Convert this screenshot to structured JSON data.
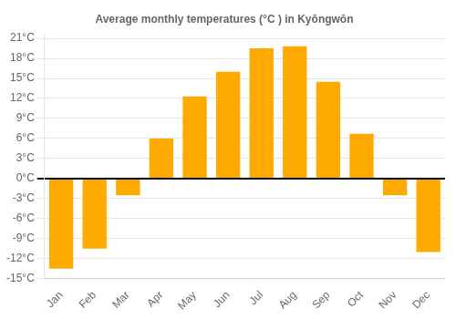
{
  "chart_data": {
    "type": "bar",
    "title": "Average monthly temperatures (°C ) in Kyŏngwŏn",
    "categories": [
      "Jan",
      "Feb",
      "Mar",
      "Apr",
      "May",
      "Jun",
      "Jul",
      "Aug",
      "Sep",
      "Oct",
      "Nov",
      "Dec"
    ],
    "values": [
      -13.5,
      -10.5,
      -2.5,
      6.0,
      12.3,
      16.0,
      19.5,
      19.8,
      14.5,
      6.7,
      -2.5,
      -11.0
    ],
    "color": "#FFAA00",
    "ylim": [
      -15,
      21.5
    ],
    "yticks": [
      {
        "value": -15,
        "label": "-15°C"
      },
      {
        "value": -12,
        "label": "-12°C"
      },
      {
        "value": -9,
        "label": "-9°C"
      },
      {
        "value": -6,
        "label": "-6°C"
      },
      {
        "value": -3,
        "label": "-3°C"
      },
      {
        "value": 0,
        "label": "0°C"
      },
      {
        "value": 3,
        "label": "3°C"
      },
      {
        "value": 6,
        "label": "6°C"
      },
      {
        "value": 9,
        "label": "9°C"
      },
      {
        "value": 12,
        "label": "12°C"
      },
      {
        "value": 15,
        "label": "15°C"
      },
      {
        "value": 18,
        "label": "18°C"
      },
      {
        "value": 21,
        "label": "21°C"
      }
    ],
    "grid": true
  }
}
